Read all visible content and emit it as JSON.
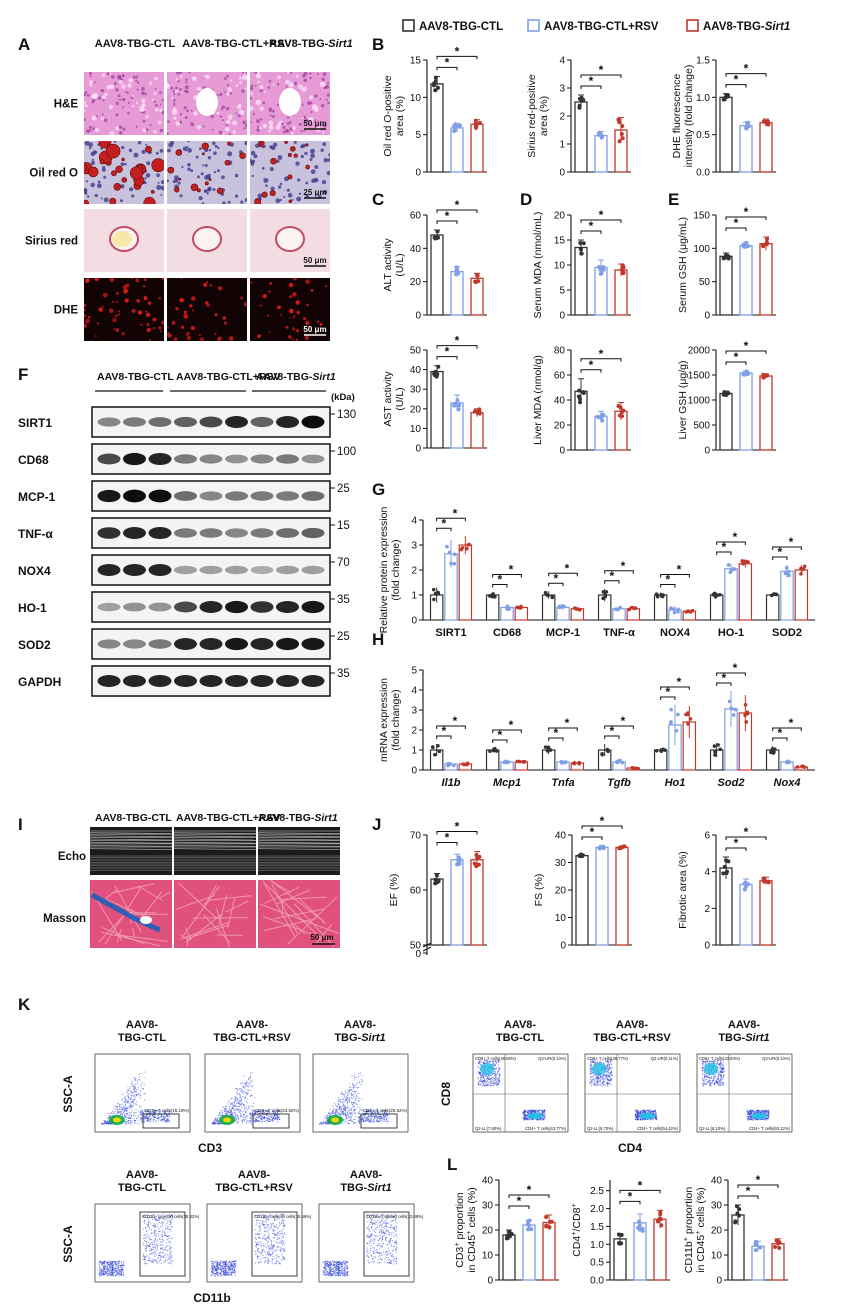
{
  "colors": {
    "ctl": "#333333",
    "rsv": "#7f9fe6",
    "sirt1": "#c0392b"
  },
  "legend": [
    {
      "key": "ctl",
      "label": "AAV8-TBG-CTL"
    },
    {
      "key": "rsv",
      "label": "AAV8-TBG-CTL+RSV"
    },
    {
      "key": "sirt1",
      "label": "AAV8-TBG-Sirt1"
    }
  ],
  "panel_labels": [
    "A",
    "B",
    "C",
    "D",
    "E",
    "F",
    "G",
    "H",
    "I",
    "J",
    "K",
    "L"
  ],
  "histology": {
    "column_titles": [
      "AAV8-TBG-CTL",
      "AAV8-TBG-CTL+RSV",
      "AAV8-TBG-Sirt1"
    ],
    "rows": [
      {
        "label": "H&E",
        "scale": "50 μm",
        "style": "he"
      },
      {
        "label": "Oil red O",
        "scale": "25 μm",
        "style": "oro"
      },
      {
        "label": "Sirius red",
        "scale": "50 μm",
        "style": "sirius"
      },
      {
        "label": "DHE",
        "scale": "50 μm",
        "style": "dhe"
      }
    ]
  },
  "western": {
    "group_titles": [
      "AAV8-TBG-CTL",
      "AAV8-TBG-CTL+RSV",
      "AAV8-TBG-Sirt1"
    ],
    "kda_label": "(kDa)",
    "rows": [
      {
        "label": "SIRT1",
        "kda": "130"
      },
      {
        "label": "CD68",
        "kda": "100"
      },
      {
        "label": "MCP-1",
        "kda": "25"
      },
      {
        "label": "TNF-α",
        "kda": "15"
      },
      {
        "label": "NOX4",
        "kda": "70"
      },
      {
        "label": "HO-1",
        "kda": "35"
      },
      {
        "label": "SOD2",
        "kda": "25"
      },
      {
        "label": "GAPDH",
        "kda": "35"
      }
    ]
  },
  "heart": {
    "column_titles": [
      "AAV8-TBG-CTL",
      "AAV8-TBG-CTL+RSV",
      "AAV8-TBG-Sirt1"
    ],
    "rows": [
      {
        "label": "Echo"
      },
      {
        "label": "Masson"
      }
    ],
    "scale": "50 μm"
  },
  "flow": {
    "cd3_titles": [
      [
        "AAV8-",
        "TBG-CTL"
      ],
      [
        "AAV8-",
        "TBG-CTL+RSV"
      ],
      [
        "AAV8-",
        "TBG-Sirt1"
      ]
    ],
    "cd3_gates": [
      "CD3+ T cells(15.19%)",
      "CD3+ T cells(23.62%)",
      "CD3+ T cells(26.82%)"
    ],
    "cd3_xlabel": "CD3",
    "ssc_label": "SSC-A",
    "cd4_titles": [
      [
        "AAV8-",
        "TBG-CTL"
      ],
      [
        "AAV8-",
        "TBG-CTL+RSV"
      ],
      [
        "AAV8-",
        "TBG-Sirt1"
      ]
    ],
    "cd4_quads": [
      [
        "CD8+ T cells(48.56%)",
        "Q2-UR(0.14%)",
        "Q2-LL(7.60%)",
        "CD4+ T cells(43.77%)"
      ],
      [
        "CD8+ T cells(38.77%)",
        "Q2-UR(0.11%)",
        "Q2-LL(5.70%)",
        "CD4+ T cells(54.42%)"
      ],
      [
        "CD8+ T cells(33.64%)",
        "Q2-UR(0.14%)",
        "Q2-LL(6.10%)",
        "CD4+ T cells(60.12%)"
      ]
    ],
    "cd4_xlabel": "CD4",
    "cd8_label": "CD8",
    "cd11b_titles": [
      [
        "AAV8-",
        "TBG-CTL"
      ],
      [
        "AAV8-",
        "TBG-CTL+RSV"
      ],
      [
        "AAV8-",
        "TBG-Sirt1"
      ]
    ],
    "cd11b_gates": [
      "CD11b+ myeloid cells(28.82%)",
      "CD11b+ myeloid cells(15.66%)",
      "CD11b+ myeloid cells(13.68%)"
    ],
    "cd11b_xlabel": "CD11b"
  },
  "sig": "*",
  "chart_data": [
    {
      "id": "B1",
      "type": "bar",
      "ylabel": [
        "Oil red O-positive",
        "area (%)"
      ],
      "ylim": [
        0,
        15
      ],
      "yticks": [
        0,
        5,
        10,
        15
      ],
      "categories": [
        "AAV8-TBG-CTL",
        "AAV8-TBG-CTL+RSV",
        "AAV8-TBG-Sirt1"
      ],
      "values": [
        11.8,
        5.9,
        6.4
      ],
      "errors": [
        1.0,
        0.6,
        0.6
      ]
    },
    {
      "id": "B2",
      "type": "bar",
      "ylabel": [
        "Sirius red-positive",
        "area (%)"
      ],
      "ylim": [
        0,
        4
      ],
      "yticks": [
        0,
        1,
        2,
        3,
        4
      ],
      "categories": [
        "AAV8-TBG-CTL",
        "AAV8-TBG-CTL+RSV",
        "AAV8-TBG-Sirt1"
      ],
      "values": [
        2.5,
        1.3,
        1.5
      ],
      "errors": [
        0.25,
        0.15,
        0.45
      ]
    },
    {
      "id": "B3",
      "type": "bar",
      "ylabel": [
        "DHE fluorescence",
        "intensity (fold change)"
      ],
      "ylim": [
        0,
        1.5
      ],
      "yticks": [
        "0.0",
        "0.5",
        "1.0",
        "1.5"
      ],
      "categories": [
        "AAV8-TBG-CTL",
        "AAV8-TBG-CTL+RSV",
        "AAV8-TBG-Sirt1"
      ],
      "values": [
        1.0,
        0.62,
        0.66
      ],
      "errors": [
        0.05,
        0.05,
        0.05
      ]
    },
    {
      "id": "C1",
      "type": "bar",
      "ylabel": [
        "ALT activity",
        "(U/L)"
      ],
      "ylim": [
        0,
        60
      ],
      "yticks": [
        0,
        20,
        40,
        60
      ],
      "categories": [
        "AAV8-TBG-CTL",
        "AAV8-TBG-CTL+RSV",
        "AAV8-TBG-Sirt1"
      ],
      "values": [
        48,
        26,
        22
      ],
      "errors": [
        3,
        3,
        3
      ]
    },
    {
      "id": "C2",
      "type": "bar",
      "ylabel": [
        "AST activity",
        "(U/L)"
      ],
      "ylim": [
        0,
        50
      ],
      "yticks": [
        0,
        10,
        20,
        30,
        40,
        50
      ],
      "categories": [
        "AAV8-TBG-CTL",
        "AAV8-TBG-CTL+RSV",
        "AAV8-TBG-Sirt1"
      ],
      "values": [
        39,
        23,
        18
      ],
      "errors": [
        3,
        4,
        2
      ]
    },
    {
      "id": "D1",
      "type": "bar",
      "ylabel": [
        "Serum MDA (nmol/mL)"
      ],
      "ylim": [
        0,
        20
      ],
      "yticks": [
        0,
        5,
        10,
        15,
        20
      ],
      "categories": [
        "AAV8-TBG-CTL",
        "AAV8-TBG-CTL+RSV",
        "AAV8-TBG-Sirt1"
      ],
      "values": [
        13.5,
        9.5,
        9.0
      ],
      "errors": [
        1.5,
        1.5,
        1.2
      ]
    },
    {
      "id": "D2",
      "type": "bar",
      "ylabel": [
        "Liver MDA (nmol/g)"
      ],
      "ylim": [
        0,
        80
      ],
      "yticks": [
        0,
        20,
        40,
        60,
        80
      ],
      "categories": [
        "AAV8-TBG-CTL",
        "AAV8-TBG-CTL+RSV",
        "AAV8-TBG-Sirt1"
      ],
      "values": [
        47,
        27,
        31
      ],
      "errors": [
        10,
        4,
        7
      ]
    },
    {
      "id": "E1",
      "type": "bar",
      "ylabel": [
        "Serum GSH (μg/mL)"
      ],
      "ylim": [
        0,
        150
      ],
      "yticks": [
        0,
        50,
        100,
        150
      ],
      "categories": [
        "AAV8-TBG-CTL",
        "AAV8-TBG-CTL+RSV",
        "AAV8-TBG-Sirt1"
      ],
      "values": [
        88,
        104,
        107
      ],
      "errors": [
        5,
        5,
        10
      ]
    },
    {
      "id": "E2",
      "type": "bar",
      "ylabel": [
        "Liver GSH (μg/g)"
      ],
      "ylim": [
        0,
        2000
      ],
      "yticks": [
        0,
        500,
        1000,
        1500,
        2000
      ],
      "categories": [
        "AAV8-TBG-CTL",
        "AAV8-TBG-CTL+RSV",
        "AAV8-TBG-Sirt1"
      ],
      "values": [
        1130,
        1540,
        1480
      ],
      "errors": [
        50,
        40,
        40
      ]
    },
    {
      "id": "G",
      "type": "bar",
      "ylabel": [
        "Relative protein expression",
        "(fold change)"
      ],
      "ylim": [
        0,
        4
      ],
      "yticks": [
        0,
        1,
        2,
        3,
        4
      ],
      "categories": [
        "SIRT1",
        "CD68",
        "MCP-1",
        "TNF-α",
        "NOX4",
        "HO-1",
        "SOD2"
      ],
      "italic_categories": false,
      "series": [
        {
          "key": "ctl",
          "values": [
            1.0,
            1.0,
            1.0,
            1.0,
            1.0,
            1.0,
            1.0
          ],
          "errors": [
            0.3,
            0.1,
            0.15,
            0.25,
            0.1,
            0.1,
            0.05
          ]
        },
        {
          "key": "rsv",
          "values": [
            2.65,
            0.5,
            0.5,
            0.45,
            0.4,
            2.05,
            1.95
          ],
          "errors": [
            0.55,
            0.1,
            0.1,
            0.1,
            0.15,
            0.2,
            0.25
          ]
        },
        {
          "key": "sirt1",
          "values": [
            3.0,
            0.5,
            0.45,
            0.45,
            0.35,
            2.25,
            2.0
          ],
          "errors": [
            0.35,
            0.05,
            0.05,
            0.05,
            0.05,
            0.15,
            0.2
          ]
        }
      ]
    },
    {
      "id": "H",
      "type": "bar",
      "ylabel": [
        "mRNA expression",
        "(fold change)"
      ],
      "ylim": [
        0,
        5
      ],
      "yticks": [
        0,
        1,
        2,
        3,
        4,
        5
      ],
      "categories": [
        "Il1b",
        "Mcp1",
        "Tnfa",
        "Tgfb",
        "Ho1",
        "Sod2",
        "Nox4"
      ],
      "italic_categories": true,
      "series": [
        {
          "key": "ctl",
          "values": [
            1.0,
            1.0,
            1.0,
            1.0,
            1.0,
            1.0,
            1.0
          ],
          "errors": [
            0.3,
            0.1,
            0.2,
            0.3,
            0.1,
            0.35,
            0.2
          ]
        },
        {
          "key": "rsv",
          "values": [
            0.3,
            0.4,
            0.4,
            0.4,
            2.25,
            3.05,
            0.4
          ],
          "errors": [
            0.1,
            0.05,
            0.05,
            0.1,
            1.0,
            0.9,
            0.1
          ]
        },
        {
          "key": "sirt1",
          "values": [
            0.3,
            0.4,
            0.35,
            0.1,
            2.4,
            2.85,
            0.15
          ],
          "errors": [
            0.05,
            0.05,
            0.05,
            0.05,
            0.8,
            0.9,
            0.05
          ]
        }
      ]
    },
    {
      "id": "J1",
      "type": "bar",
      "ylabel": [
        "EF (%)"
      ],
      "ylim": [
        50,
        70
      ],
      "yticks": [
        0,
        50,
        60,
        70
      ],
      "axis_break": true,
      "categories": [
        "AAV8-TBG-CTL",
        "AAV8-TBG-CTL+RSV",
        "AAV8-TBG-Sirt1"
      ],
      "values": [
        62,
        65.5,
        65.5
      ],
      "errors": [
        1,
        1,
        1.5
      ]
    },
    {
      "id": "J2",
      "type": "bar",
      "ylabel": [
        "FS (%)"
      ],
      "ylim": [
        0,
        40
      ],
      "yticks": [
        0,
        10,
        20,
        30,
        40
      ],
      "categories": [
        "AAV8-TBG-CTL",
        "AAV8-TBG-CTL+RSV",
        "AAV8-TBG-Sirt1"
      ],
      "values": [
        32.5,
        35.5,
        35.5
      ],
      "errors": [
        0.5,
        0.5,
        0.5
      ]
    },
    {
      "id": "J3",
      "type": "bar",
      "ylabel": [
        "Fibrotic area (%)"
      ],
      "ylim": [
        0,
        6
      ],
      "yticks": [
        0,
        2,
        4,
        6
      ],
      "categories": [
        "AAV8-TBG-CTL",
        "AAV8-TBG-CTL+RSV",
        "AAV8-TBG-Sirt1"
      ],
      "values": [
        4.2,
        3.3,
        3.5
      ],
      "errors": [
        0.6,
        0.3,
        0.2
      ]
    },
    {
      "id": "L1",
      "type": "bar",
      "ylabel": [
        "CD3+ proportion",
        "in CD45+ cells (%)"
      ],
      "ylim": [
        0,
        40
      ],
      "yticks": [
        0,
        10,
        20,
        30,
        40
      ],
      "categories": [
        "AAV8-TBG-CTL",
        "AAV8-TBG-CTL+RSV",
        "AAV8-TBG-Sirt1"
      ],
      "values": [
        18,
        22,
        23
      ],
      "errors": [
        2,
        2,
        3
      ]
    },
    {
      "id": "L2",
      "type": "bar",
      "ylabel": [
        "CD4+/CD8+"
      ],
      "ylim": [
        0,
        2.8
      ],
      "yticks": [
        "0.0",
        "0.5",
        "1.0",
        "1.5",
        "2.0",
        "2.5"
      ],
      "categories": [
        "AAV8-TBG-CTL",
        "AAV8-TBG-CTL+RSV",
        "AAV8-TBG-Sirt1"
      ],
      "values": [
        1.15,
        1.6,
        1.7
      ],
      "errors": [
        0.15,
        0.25,
        0.25
      ]
    },
    {
      "id": "L3",
      "type": "bar",
      "ylabel": [
        "CD11b+ proportion",
        "in CD45+ cells (%)"
      ],
      "ylim": [
        0,
        40
      ],
      "yticks": [
        0,
        10,
        20,
        30,
        40
      ],
      "categories": [
        "AAV8-TBG-CTL",
        "AAV8-TBG-CTL+RSV",
        "AAV8-TBG-Sirt1"
      ],
      "values": [
        26,
        13.5,
        14.5
      ],
      "errors": [
        4,
        2,
        2
      ]
    }
  ]
}
